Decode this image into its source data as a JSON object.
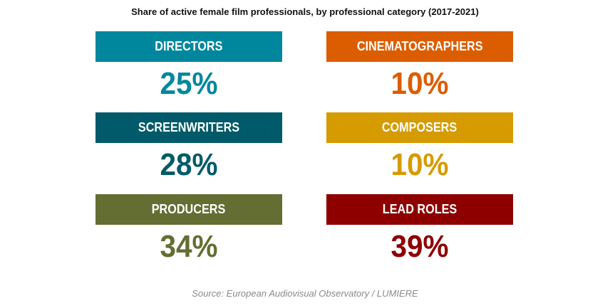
{
  "chart_data": {
    "type": "table",
    "title": "Share of active female film professionals, by professional category (2017-2021)",
    "unit": "%",
    "items": [
      {
        "label": "DIRECTORS",
        "value": 25,
        "display": "25%",
        "color": "#00879e"
      },
      {
        "label": "CINEMATOGRAPHERS",
        "value": 10,
        "display": "10%",
        "color": "#dc5d00"
      },
      {
        "label": "SCREENWRITERS",
        "value": 28,
        "display": "28%",
        "color": "#005a69"
      },
      {
        "label": "COMPOSERS",
        "value": 10,
        "display": "10%",
        "color": "#d69b00"
      },
      {
        "label": "PRODUCERS",
        "value": 34,
        "display": "34%",
        "color": "#646e32"
      },
      {
        "label": "LEAD ROLES",
        "value": 39,
        "display": "39%",
        "color": "#8e0000"
      }
    ],
    "source": "Source: European Audiovisual Observatory / LUMIERE"
  }
}
